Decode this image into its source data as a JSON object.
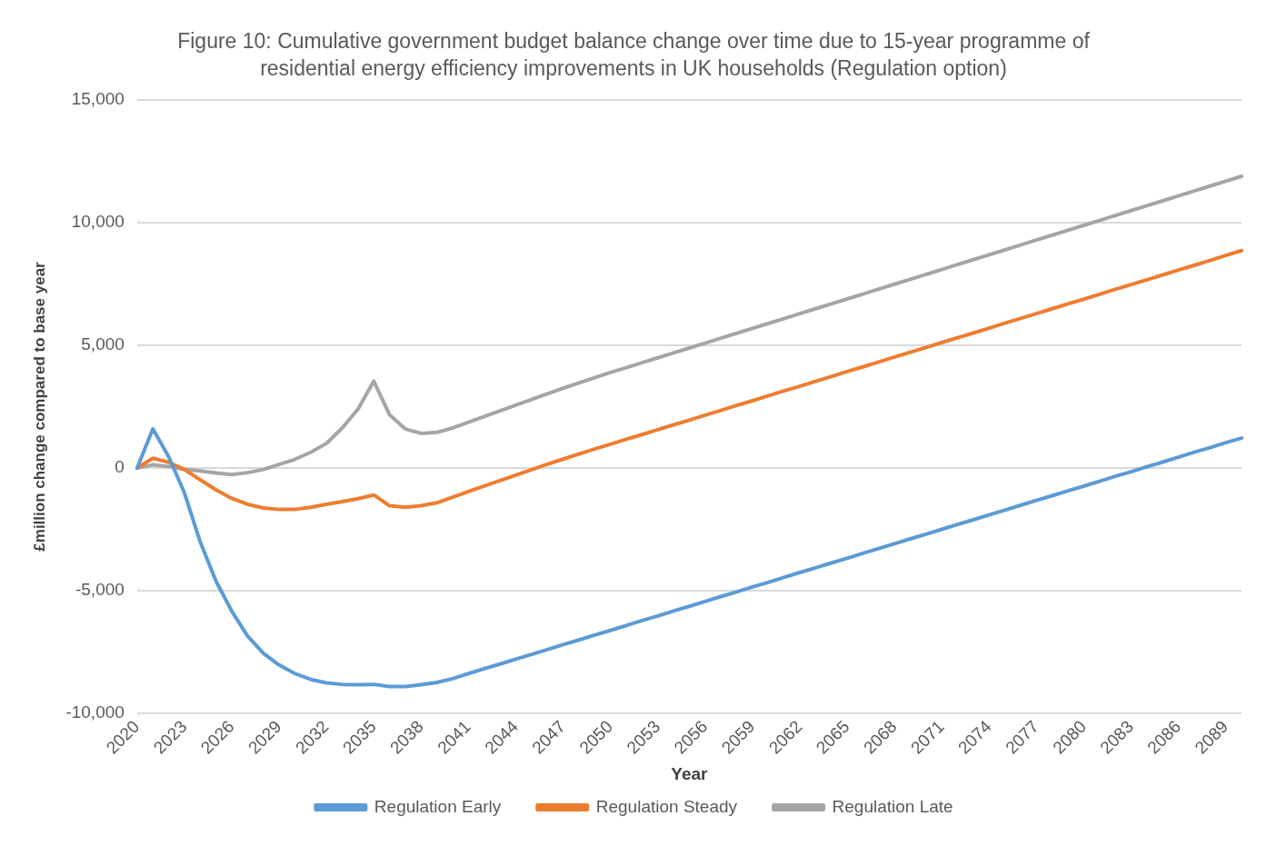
{
  "chart_data": {
    "type": "line",
    "title": "Figure 10: Cumulative government budget balance change over time due to 15-year programme of residential energy efficiency improvements in UK households (Regulation option)",
    "xlabel": "Year",
    "ylabel": "£million change compared to base year",
    "categories": [
      "2020",
      null,
      null,
      "2023",
      null,
      null,
      "2026",
      null,
      null,
      "2029",
      null,
      null,
      "2032",
      null,
      null,
      "2035",
      null,
      null,
      "2038",
      null,
      null,
      "2041",
      null,
      null,
      "2044",
      null,
      null,
      "2047",
      null,
      null,
      "2050",
      null,
      null,
      "2053",
      null,
      null,
      "2056",
      null,
      null,
      "2059",
      null,
      null,
      "2062",
      null,
      null,
      "2065",
      null,
      null,
      "2068",
      null,
      null,
      "2071",
      null,
      null,
      "2074",
      null,
      null,
      "2077",
      null,
      null,
      "2080",
      null,
      null,
      "2083",
      null,
      null,
      "2086",
      null,
      null,
      "2089",
      null
    ],
    "series": [
      {
        "name": "Regulation Early",
        "color": "#5b9bd5",
        "values": [
          0,
          1590,
          460,
          -1010,
          -3010,
          -4610,
          -5840,
          -6850,
          -7550,
          -8030,
          -8380,
          -8620,
          -8760,
          -8820,
          -8830,
          -8820,
          -8910,
          -8910,
          -8830,
          -8740,
          -8590,
          -8380,
          -8180,
          -7990,
          -7790,
          -7600,
          -7400,
          -7200,
          -7010,
          -6810,
          -6620,
          -6420,
          -6220,
          -6030,
          -5830,
          -5640,
          -5440,
          -5240,
          -5050,
          -4850,
          -4660,
          -4460,
          -4260,
          -4070,
          -3870,
          -3680,
          -3480,
          -3280,
          -3090,
          -2890,
          -2700,
          -2500,
          -2300,
          -2110,
          -1910,
          -1720,
          -1520,
          -1320,
          -1130,
          -930,
          -740,
          -540,
          -340,
          -150,
          50,
          240,
          440,
          640,
          830,
          1030,
          1220
        ]
      },
      {
        "name": "Regulation Steady",
        "color": "#ed7d31",
        "values": [
          0,
          400,
          230,
          -60,
          -480,
          -890,
          -1240,
          -1480,
          -1630,
          -1690,
          -1690,
          -1600,
          -1480,
          -1370,
          -1250,
          -1100,
          -1540,
          -1600,
          -1540,
          -1420,
          -1190,
          -960,
          -740,
          -510,
          -290,
          -70,
          150,
          360,
          570,
          770,
          970,
          1170,
          1360,
          1560,
          1760,
          1950,
          2150,
          2350,
          2550,
          2740,
          2940,
          3140,
          3330,
          3530,
          3730,
          3930,
          4120,
          4320,
          4520,
          4720,
          4910,
          5110,
          5310,
          5500,
          5700,
          5900,
          6100,
          6290,
          6490,
          6690,
          6880,
          7080,
          7280,
          7480,
          7670,
          7870,
          8070,
          8260,
          8460,
          8660,
          8860
        ]
      },
      {
        "name": "Regulation Late",
        "color": "#a5a5a5",
        "values": [
          0,
          130,
          60,
          -60,
          -120,
          -200,
          -270,
          -190,
          -60,
          140,
          350,
          640,
          1000,
          1630,
          2400,
          3540,
          2170,
          1590,
          1410,
          1450,
          1630,
          1870,
          2100,
          2330,
          2560,
          2790,
          3020,
          3250,
          3470,
          3680,
          3890,
          4090,
          4290,
          4490,
          4690,
          4890,
          5090,
          5290,
          5490,
          5690,
          5890,
          6090,
          6290,
          6490,
          6690,
          6890,
          7090,
          7290,
          7490,
          7690,
          7890,
          8090,
          8290,
          8490,
          8690,
          8890,
          9090,
          9290,
          9490,
          9690,
          9890,
          10090,
          10290,
          10490,
          10690,
          10890,
          11090,
          11290,
          11490,
          11690,
          11890
        ]
      }
    ],
    "ylim": [
      -10000,
      15000
    ],
    "yticks": [
      {
        "value": -10000,
        "label": "-10,000"
      },
      {
        "value": -5000,
        "label": "-5,000"
      },
      0,
      {
        "value": 5000,
        "label": "5,000"
      },
      {
        "value": 10000,
        "label": "10,000"
      },
      {
        "value": 15000,
        "label": "15,000"
      }
    ],
    "grid": "y",
    "legend": "bottom",
    "marker": "none",
    "line_style": "solid"
  }
}
